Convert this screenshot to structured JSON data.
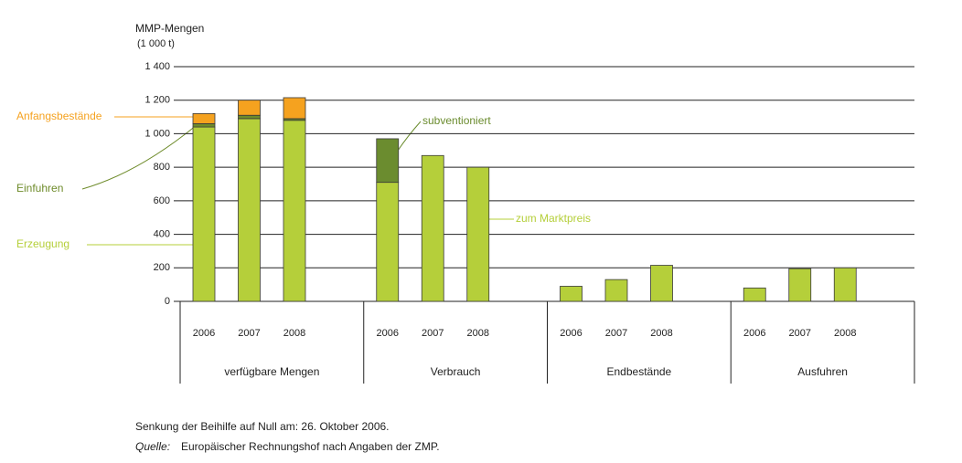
{
  "chart_data": {
    "type": "bar",
    "y_title": "MMP-Mengen",
    "y_unit": "(1 000 t)",
    "categories": [
      "2006",
      "2007",
      "2008",
      "2006",
      "2007",
      "2008",
      "2006",
      "2007",
      "2008",
      "2006",
      "2007",
      "2008"
    ],
    "groups": [
      "verfügbare Mengen",
      "Verbrauch",
      "Endbestände",
      "Ausfuhren"
    ],
    "series": [
      {
        "name": "Erzeugung",
        "color": "#b5cf3a",
        "values": [
          1040,
          1090,
          1080,
          null,
          null,
          null,
          null,
          null,
          null,
          null,
          null,
          null
        ]
      },
      {
        "name": "Einfuhren",
        "color": "#6e8b2a",
        "values": [
          20,
          20,
          10,
          null,
          null,
          null,
          null,
          null,
          null,
          null,
          null,
          null
        ]
      },
      {
        "name": "Anfangsbestände",
        "color": "#f5a21f",
        "values": [
          60,
          90,
          125,
          null,
          null,
          null,
          null,
          null,
          null,
          null,
          null,
          null
        ]
      },
      {
        "name": "zum Marktpreis",
        "color": "#b5cf3a",
        "values": [
          null,
          null,
          null,
          710,
          870,
          800,
          null,
          null,
          null,
          null,
          null,
          null
        ]
      },
      {
        "name": "subventioniert",
        "color": "#6b8c2f",
        "values": [
          null,
          null,
          null,
          260,
          null,
          null,
          null,
          null,
          null,
          null,
          null,
          null
        ]
      },
      {
        "color": "#b5cf3a",
        "values": [
          null,
          null,
          null,
          null,
          null,
          null,
          90,
          130,
          215,
          80,
          195,
          200
        ]
      }
    ],
    "ylim": [
      0,
      1400
    ],
    "yticks": [
      0,
      200,
      400,
      600,
      800,
      {
        "value": 1000,
        "label": "1 000"
      },
      {
        "value": 1200,
        "label": "1 200"
      },
      {
        "value": 1400,
        "label": "1 400"
      }
    ],
    "grid": true,
    "note": "Senkung der Beihilfe auf Null am: 26. Oktober 2006.",
    "source_label": "Quelle:",
    "source_text": "Europäischer Rechnungshof nach Angaben der ZMP."
  }
}
